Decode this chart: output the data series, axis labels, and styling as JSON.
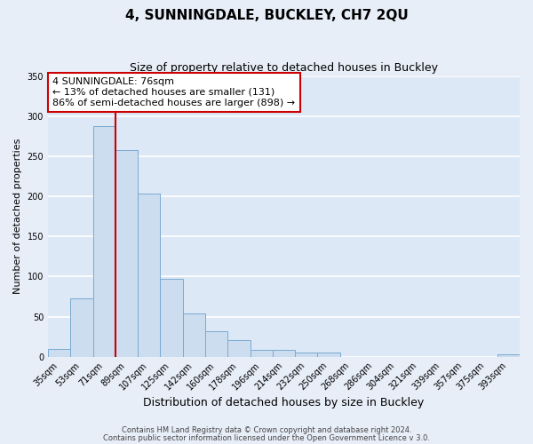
{
  "title": "4, SUNNINGDALE, BUCKLEY, CH7 2QU",
  "subtitle": "Size of property relative to detached houses in Buckley",
  "xlabel": "Distribution of detached houses by size in Buckley",
  "ylabel": "Number of detached properties",
  "bar_labels": [
    "35sqm",
    "53sqm",
    "71sqm",
    "89sqm",
    "107sqm",
    "125sqm",
    "142sqm",
    "160sqm",
    "178sqm",
    "196sqm",
    "214sqm",
    "232sqm",
    "250sqm",
    "268sqm",
    "286sqm",
    "304sqm",
    "321sqm",
    "339sqm",
    "357sqm",
    "375sqm",
    "393sqm"
  ],
  "bar_heights": [
    10,
    73,
    287,
    258,
    203,
    97,
    54,
    32,
    21,
    9,
    9,
    5,
    5,
    0,
    0,
    0,
    0,
    0,
    0,
    0,
    3
  ],
  "bar_color": "#ccddf0",
  "bar_edge_color": "#7aaad0",
  "vline_x_idx": 2,
  "vline_color": "#cc0000",
  "ylim": [
    0,
    350
  ],
  "yticks": [
    0,
    50,
    100,
    150,
    200,
    250,
    300,
    350
  ],
  "annotation_text": "4 SUNNINGDALE: 76sqm\n← 13% of detached houses are smaller (131)\n86% of semi-detached houses are larger (898) →",
  "annotation_box_facecolor": "#ffffff",
  "annotation_box_edgecolor": "#cc0000",
  "footer1": "Contains HM Land Registry data © Crown copyright and database right 2024.",
  "footer2": "Contains public sector information licensed under the Open Government Licence v 3.0.",
  "fig_facecolor": "#e8eef8",
  "ax_facecolor": "#dce8f5",
  "grid_color": "#ffffff",
  "title_fontsize": 11,
  "subtitle_fontsize": 9,
  "ylabel_fontsize": 8,
  "xlabel_fontsize": 9,
  "tick_fontsize": 7,
  "footer_fontsize": 6,
  "ann_fontsize": 8
}
